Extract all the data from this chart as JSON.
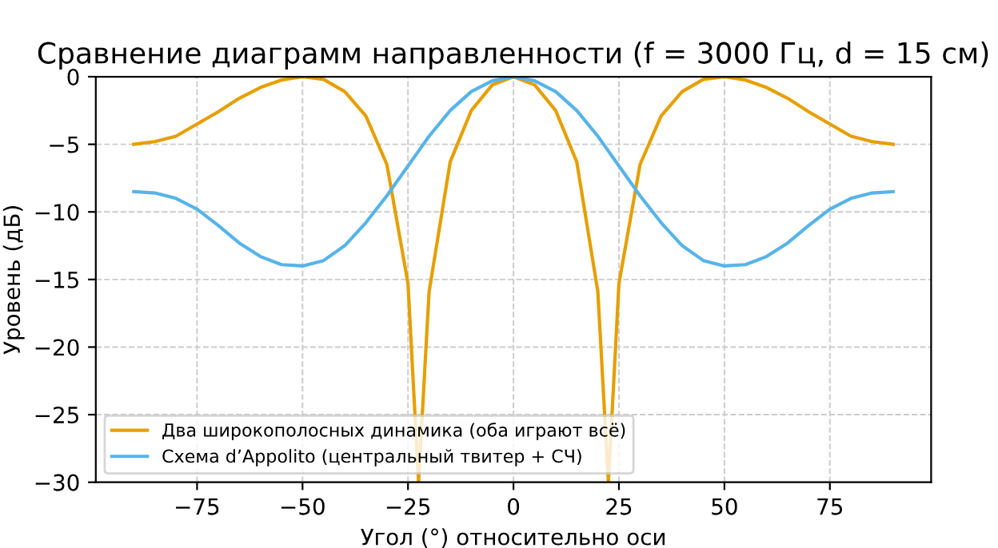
{
  "chart_data": {
    "type": "line",
    "title": "Сравнение диаграмм направленности (f = 3000 Гц, d = 15 см)",
    "xlabel": "Угол (°) относительно оси",
    "ylabel": "Уровень (дБ)",
    "x": [
      -90,
      -85,
      -80,
      -75,
      -70,
      -65,
      -60,
      -55,
      -50,
      -45,
      -40,
      -35,
      -30,
      -25,
      -22.5,
      -20,
      -15,
      -10,
      -5,
      0,
      5,
      10,
      15,
      20,
      22.5,
      25,
      30,
      35,
      40,
      45,
      50,
      55,
      60,
      65,
      70,
      75,
      80,
      85,
      90
    ],
    "series": [
      {
        "name": "Два широкополосных динамика (оба играют всё)",
        "color": "#e69f00",
        "values": [
          -5.0,
          -4.8,
          -4.4,
          -3.5,
          -2.6,
          -1.6,
          -0.8,
          -0.25,
          0,
          -0.2,
          -1.1,
          -2.9,
          -6.5,
          -15.3,
          -30,
          -15.9,
          -6.3,
          -2.5,
          -0.6,
          0,
          -0.6,
          -2.5,
          -6.3,
          -15.9,
          -30,
          -15.3,
          -6.5,
          -2.9,
          -1.1,
          -0.2,
          0,
          -0.25,
          -0.8,
          -1.6,
          -2.6,
          -3.5,
          -4.4,
          -4.8,
          -5.0
        ]
      },
      {
        "name": "Схема d’Appolito (центральный твитер + СЧ)",
        "color": "#56b4e9",
        "values": [
          -8.5,
          -8.6,
          -9.0,
          -9.8,
          -11.0,
          -12.3,
          -13.3,
          -13.9,
          -14.0,
          -13.6,
          -12.5,
          -10.8,
          -8.8,
          -6.6,
          -5.5,
          -4.4,
          -2.5,
          -1.1,
          -0.3,
          0,
          -0.3,
          -1.1,
          -2.5,
          -4.4,
          -5.5,
          -6.6,
          -8.8,
          -10.8,
          -12.5,
          -13.6,
          -14.0,
          -13.9,
          -13.3,
          -12.3,
          -11.0,
          -9.8,
          -9.0,
          -8.6,
          -8.5
        ]
      }
    ],
    "xlim": [
      -99,
      99
    ],
    "ylim": [
      -30,
      0
    ],
    "xticks": [
      {
        "value": -75,
        "label": "−75"
      },
      {
        "value": -50,
        "label": "−50"
      },
      {
        "value": -25,
        "label": "−25"
      },
      0,
      25,
      50,
      75
    ],
    "yticks": [
      {
        "value": -30,
        "label": "−30"
      },
      {
        "value": -25,
        "label": "−25"
      },
      {
        "value": -20,
        "label": "−20"
      },
      {
        "value": -15,
        "label": "−15"
      },
      {
        "value": -10,
        "label": "−10"
      },
      {
        "value": -5,
        "label": "−5"
      },
      0
    ],
    "grid": true,
    "legend": "bottom left",
    "line_style": "solid"
  }
}
